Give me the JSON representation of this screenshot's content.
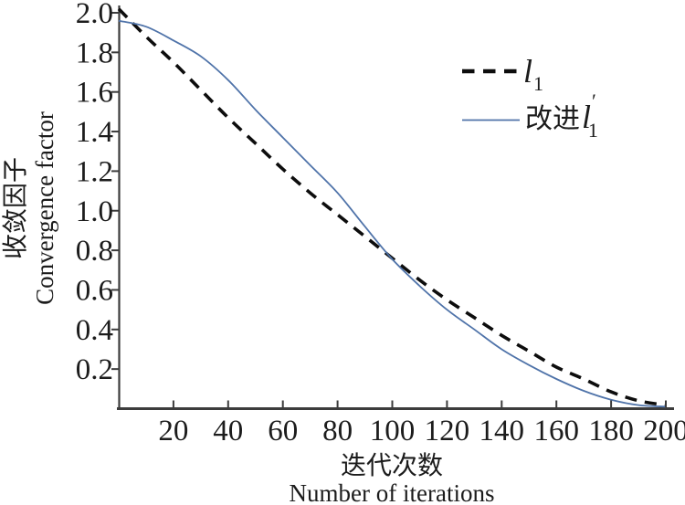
{
  "figure": {
    "background": "#ffffff"
  },
  "chart_data": {
    "type": "line",
    "title": "",
    "xlabel_zh": "迭代次数",
    "xlabel_en": "Number of iterations",
    "ylabel_zh": "收敛因子",
    "ylabel_en": "Convergence factor",
    "xlim": [
      0,
      200
    ],
    "ylim": [
      0,
      2.0
    ],
    "x_ticks": [
      20,
      40,
      60,
      80,
      100,
      120,
      140,
      160,
      180,
      200
    ],
    "y_ticks": [
      0.2,
      0.4,
      0.6,
      0.8,
      1.0,
      1.2,
      1.4,
      1.6,
      1.8,
      2.0
    ],
    "grid": false,
    "legend_position": "upper-right-inside",
    "axis_color": "#3c3c3c",
    "text_color": "#1c1c1c",
    "x": [
      0,
      10,
      20,
      30,
      40,
      50,
      60,
      70,
      80,
      90,
      100,
      110,
      120,
      130,
      140,
      150,
      160,
      170,
      180,
      190,
      200
    ],
    "series": [
      {
        "name": "l1",
        "legend_label": {
          "prefix": "",
          "base": "l",
          "sub": "1",
          "prime": ""
        },
        "line_style": "dashed",
        "color": "#0d0d0d",
        "width": 3.6,
        "values": [
          2.02,
          1.88,
          1.75,
          1.61,
          1.47,
          1.34,
          1.21,
          1.09,
          0.98,
          0.87,
          0.76,
          0.65,
          0.55,
          0.46,
          0.37,
          0.29,
          0.21,
          0.15,
          0.085,
          0.04,
          0.018
        ]
      },
      {
        "name": "改进l1′",
        "legend_label": {
          "prefix": "改进",
          "base": "l",
          "sub": "1",
          "prime": "′"
        },
        "line_style": "solid",
        "color": "#4f73a9",
        "width": 1.8,
        "values": [
          1.96,
          1.93,
          1.86,
          1.78,
          1.66,
          1.51,
          1.37,
          1.23,
          1.09,
          0.92,
          0.755,
          0.62,
          0.5,
          0.4,
          0.3,
          0.22,
          0.15,
          0.09,
          0.045,
          0.018,
          0.01
        ]
      }
    ]
  }
}
